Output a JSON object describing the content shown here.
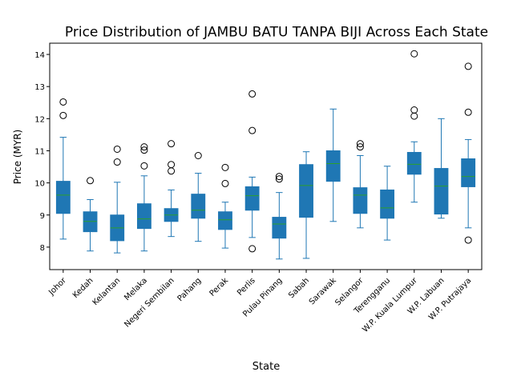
{
  "chart_data": {
    "type": "box",
    "title": "Price Distribution of JAMBU BATU TANPA BIJI Across Each State",
    "xlabel": "State",
    "ylabel": "Price (MYR)",
    "ylim": [
      7.3,
      14.35
    ],
    "yticks": [
      8,
      9,
      10,
      11,
      12,
      13,
      14
    ],
    "grid": false,
    "colors": {
      "box_fill": "#1f77b4",
      "whisker": "#1f77b4",
      "median": "#2ca02c",
      "outlier_edge": "#000000",
      "axis": "#000000"
    },
    "categories": [
      "Johor",
      "Kedah",
      "Kelantan",
      "Melaka",
      "Negeri Sembilan",
      "Pahang",
      "Perak",
      "Perlis",
      "Pulau Pinang",
      "Sabah",
      "Sarawak",
      "Selangor",
      "Terengganu",
      "W.P. Kuala Lumpur",
      "W.P. Labuan",
      "W.P. Putrajaya"
    ],
    "boxes": [
      {
        "whislo": 8.25,
        "q1": 9.05,
        "med": 9.62,
        "q3": 10.05,
        "whishi": 11.42,
        "fliers": [
          12.1,
          12.52
        ]
      },
      {
        "whislo": 7.88,
        "q1": 8.48,
        "med": 8.8,
        "q3": 9.1,
        "whishi": 9.48,
        "fliers": [
          10.07
        ]
      },
      {
        "whislo": 7.82,
        "q1": 8.2,
        "med": 8.6,
        "q3": 9.0,
        "whishi": 10.02,
        "fliers": [
          10.65,
          11.05
        ]
      },
      {
        "whislo": 7.88,
        "q1": 8.58,
        "med": 8.88,
        "q3": 9.35,
        "whishi": 10.22,
        "fliers": [
          10.53,
          11.02,
          11.12
        ]
      },
      {
        "whislo": 8.33,
        "q1": 8.8,
        "med": 9.0,
        "q3": 9.2,
        "whishi": 9.78,
        "fliers": [
          10.37,
          10.57,
          11.22
        ]
      },
      {
        "whislo": 8.18,
        "q1": 8.9,
        "med": 9.15,
        "q3": 9.65,
        "whishi": 10.3,
        "fliers": [
          10.85
        ]
      },
      {
        "whislo": 7.97,
        "q1": 8.55,
        "med": 8.85,
        "q3": 9.1,
        "whishi": 9.4,
        "fliers": [
          9.98,
          10.48
        ]
      },
      {
        "whislo": 8.3,
        "q1": 9.15,
        "med": 9.6,
        "q3": 9.88,
        "whishi": 10.18,
        "fliers": [
          7.95,
          11.63,
          12.77
        ]
      },
      {
        "whislo": 7.63,
        "q1": 8.28,
        "med": 8.72,
        "q3": 8.93,
        "whishi": 9.7,
        "fliers": [
          10.12,
          10.2
        ]
      },
      {
        "whislo": 7.65,
        "q1": 8.93,
        "med": 9.92,
        "q3": 10.57,
        "whishi": 10.97,
        "fliers": []
      },
      {
        "whislo": 8.8,
        "q1": 10.05,
        "med": 10.6,
        "q3": 11.0,
        "whishi": 12.3,
        "fliers": []
      },
      {
        "whislo": 8.6,
        "q1": 9.05,
        "med": 9.62,
        "q3": 9.85,
        "whishi": 10.85,
        "fliers": [
          11.12,
          11.22
        ]
      },
      {
        "whislo": 8.22,
        "q1": 8.9,
        "med": 9.22,
        "q3": 9.78,
        "whishi": 10.52,
        "fliers": []
      },
      {
        "whislo": 9.4,
        "q1": 10.27,
        "med": 10.58,
        "q3": 10.95,
        "whishi": 11.28,
        "fliers": [
          12.08,
          12.27,
          14.02
        ]
      },
      {
        "whislo": 8.9,
        "q1": 9.03,
        "med": 9.9,
        "q3": 10.45,
        "whishi": 12.0,
        "fliers": []
      },
      {
        "whislo": 8.6,
        "q1": 9.88,
        "med": 10.2,
        "q3": 10.75,
        "whishi": 11.35,
        "fliers": [
          8.22,
          12.2,
          13.63
        ]
      }
    ]
  }
}
